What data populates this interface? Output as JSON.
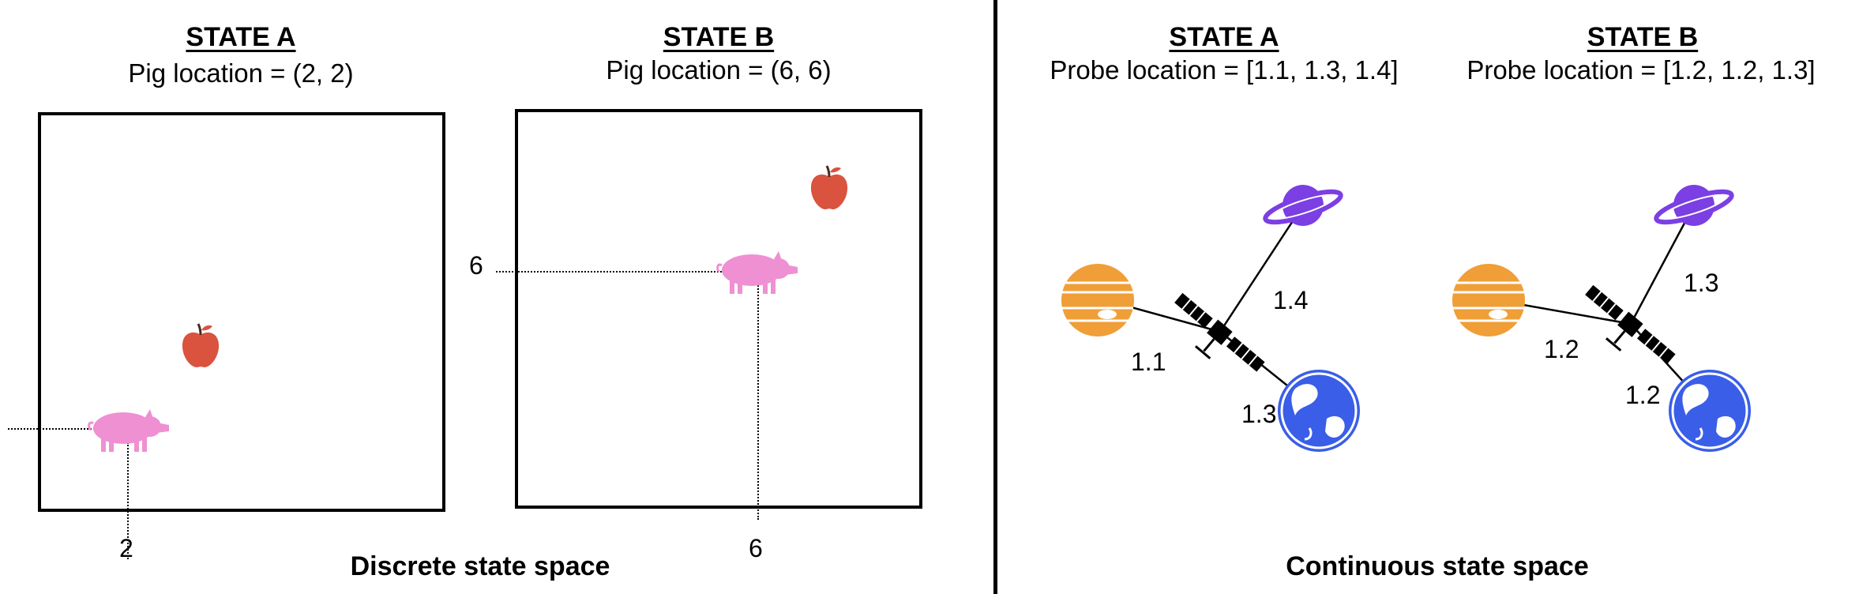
{
  "discrete": {
    "state_a": {
      "title": "STATE A",
      "subtitle": "Pig location = (2, 2)",
      "x_tick": "2"
    },
    "state_b": {
      "title": "STATE B",
      "subtitle": "Pig location = (6, 6)",
      "x_tick": "6",
      "y_tick": "6"
    },
    "footer": "Discrete state space"
  },
  "continuous": {
    "state_a": {
      "title": "STATE A",
      "subtitle": "Probe location = [1.1, 1.3, 1.4]",
      "d_jupiter": "1.1",
      "d_earth": "1.3",
      "d_saturn": "1.4"
    },
    "state_b": {
      "title": "STATE B",
      "subtitle": "Probe location = [1.2, 1.2, 1.3]",
      "d_jupiter": "1.2",
      "d_earth": "1.2",
      "d_saturn": "1.3"
    },
    "footer": "Continuous state space"
  },
  "colors": {
    "pig": "#ef90d2",
    "apple": "#d9533f",
    "jupiter": "#f09e37",
    "saturn": "#7b3fe4",
    "earth": "#3a5ee8"
  }
}
